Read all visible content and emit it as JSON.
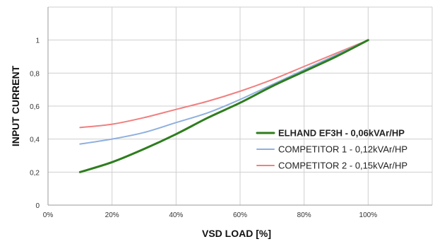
{
  "chart_data": {
    "type": "line",
    "title": "",
    "xlabel": "VSD  LOAD [%]",
    "ylabel": "INPUT CURRENT",
    "xlim": [
      0,
      120
    ],
    "ylim": [
      0,
      1.2
    ],
    "grid": true,
    "legend_position": "right",
    "x_ticks": [
      0,
      20,
      40,
      60,
      80,
      100
    ],
    "x_tick_labels": [
      "0%",
      "20%",
      "40%",
      "60%",
      "80%",
      "100%"
    ],
    "y_ticks": [
      0,
      0.2,
      0.4,
      0.6,
      0.8,
      1
    ],
    "y_tick_labels": [
      "0",
      "0,2",
      "0,4",
      "0,6",
      "0,8",
      "1"
    ],
    "series": [
      {
        "name": "ELHAND EF3H - 0,06kVAr/HP",
        "color": "#2e7d1e",
        "bold": true,
        "x": [
          10,
          20,
          30,
          40,
          50,
          60,
          70,
          80,
          90,
          100
        ],
        "y": [
          0.2,
          0.26,
          0.34,
          0.43,
          0.53,
          0.62,
          0.72,
          0.81,
          0.9,
          1.0
        ]
      },
      {
        "name": "COMPETITOR 1 - 0,12kVAr/HP",
        "color": "#8fb0de",
        "bold": false,
        "x": [
          10,
          20,
          30,
          40,
          50,
          60,
          70,
          80,
          90,
          100
        ],
        "y": [
          0.37,
          0.4,
          0.44,
          0.5,
          0.56,
          0.64,
          0.73,
          0.82,
          0.91,
          1.0
        ]
      },
      {
        "name": "COMPETITOR 2 - 0,15kVAr/HP",
        "color": "#f08080",
        "bold": false,
        "x": [
          10,
          20,
          30,
          40,
          50,
          60,
          70,
          80,
          90,
          100
        ],
        "y": [
          0.47,
          0.49,
          0.53,
          0.58,
          0.63,
          0.69,
          0.76,
          0.84,
          0.92,
          1.0
        ]
      }
    ]
  }
}
